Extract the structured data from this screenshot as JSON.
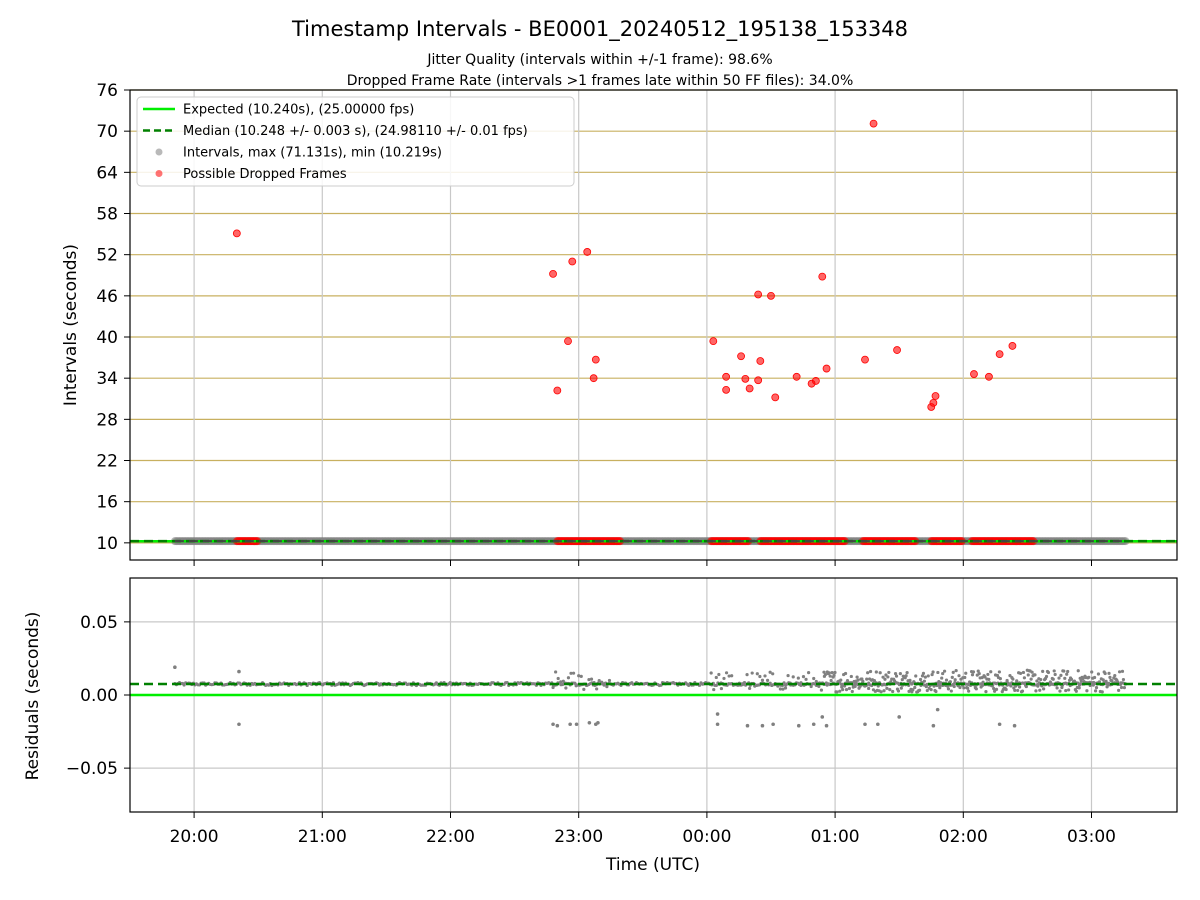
{
  "title": "Timestamp Intervals - BE0001_20240512_195138_153348",
  "subtitle_1": "Jitter Quality (intervals within +/-1 frame): 98.6%",
  "subtitle_2": "Dropped Frame Rate (intervals >1 frames late within 50 FF files): 34.0%",
  "colors": {
    "expected": "#00ee00",
    "median": "#008000",
    "intervals": "#808080",
    "dropped": "#ff0000",
    "hgrid": "#c8b060",
    "vgrid": "#c8c8c8"
  },
  "chart_data": [
    {
      "type": "scatter",
      "ylabel": "Intervals (seconds)",
      "ylim": [
        7.5,
        76
      ],
      "yticks": [
        10,
        16,
        22,
        28,
        34,
        40,
        46,
        52,
        58,
        64,
        70,
        76
      ],
      "xticks": [
        "20:00",
        "21:00",
        "22:00",
        "23:00",
        "00:00",
        "01:00",
        "02:00",
        "03:00"
      ],
      "grid": "on",
      "legend_position": "upper-left",
      "legend": [
        {
          "label": "Expected (10.240s), (25.00000 fps)",
          "style": "solid-line",
          "color": "#00ee00"
        },
        {
          "label": "Median (10.248 +/- 0.003 s), (24.98110 +/- 0.01 fps)",
          "style": "dashed-line",
          "color": "#008000"
        },
        {
          "label": "Intervals, max (71.131s), min (10.219s)",
          "style": "marker",
          "color": "#808080"
        },
        {
          "label": "Possible Dropped Frames",
          "style": "marker",
          "color": "#ff0000"
        }
      ],
      "expected_interval": 10.24,
      "median_interval": 10.248,
      "intervals_time_range": [
        "19:51",
        "03:16"
      ],
      "dropped_frames_at_base_ranges": [
        [
          "20:20",
          "20:30"
        ],
        [
          "22:50",
          "23:20"
        ],
        [
          "00:02",
          "00:20"
        ],
        [
          "00:25",
          "01:05"
        ],
        [
          "01:13",
          "01:38"
        ],
        [
          "01:45",
          "02:00"
        ],
        [
          "02:04",
          "02:33"
        ]
      ],
      "dropped_frames": [
        {
          "x": "20:20",
          "y": 55.1
        },
        {
          "x": "22:48",
          "y": 49.2
        },
        {
          "x": "22:50",
          "y": 32.2
        },
        {
          "x": "22:55",
          "y": 39.4
        },
        {
          "x": "22:57",
          "y": 51.0
        },
        {
          "x": "23:04",
          "y": 52.4
        },
        {
          "x": "23:07",
          "y": 34.0
        },
        {
          "x": "23:08",
          "y": 36.7
        },
        {
          "x": "00:03",
          "y": 39.4
        },
        {
          "x": "00:09",
          "y": 32.3
        },
        {
          "x": "00:09",
          "y": 34.2
        },
        {
          "x": "00:16",
          "y": 37.2
        },
        {
          "x": "00:18",
          "y": 33.9
        },
        {
          "x": "00:20",
          "y": 32.5
        },
        {
          "x": "00:24",
          "y": 33.7
        },
        {
          "x": "00:24",
          "y": 46.2
        },
        {
          "x": "00:25",
          "y": 36.5
        },
        {
          "x": "00:30",
          "y": 46.0
        },
        {
          "x": "00:32",
          "y": 31.2
        },
        {
          "x": "00:42",
          "y": 34.2
        },
        {
          "x": "00:49",
          "y": 33.2
        },
        {
          "x": "00:51",
          "y": 33.6
        },
        {
          "x": "00:54",
          "y": 48.8
        },
        {
          "x": "00:56",
          "y": 35.4
        },
        {
          "x": "01:14",
          "y": 36.7
        },
        {
          "x": "01:18",
          "y": 71.1
        },
        {
          "x": "01:29",
          "y": 38.1
        },
        {
          "x": "01:45",
          "y": 29.8
        },
        {
          "x": "01:46",
          "y": 30.4
        },
        {
          "x": "01:47",
          "y": 31.4
        },
        {
          "x": "02:05",
          "y": 34.6
        },
        {
          "x": "02:12",
          "y": 34.2
        },
        {
          "x": "02:17",
          "y": 37.5
        },
        {
          "x": "02:23",
          "y": 38.7
        }
      ]
    },
    {
      "type": "scatter",
      "xlabel": "Time (UTC)",
      "ylabel": "Residuals (seconds)",
      "ylim": [
        -0.08,
        0.08
      ],
      "yticks": [
        0.05,
        0.0,
        -0.05
      ],
      "ytick_labels": [
        "0.05",
        "0.00",
        "−0.05"
      ],
      "xticks": [
        "20:00",
        "21:00",
        "22:00",
        "23:00",
        "00:00",
        "01:00",
        "02:00",
        "03:00"
      ],
      "grid": "on",
      "expected_residual": 0.0,
      "median_residual": 0.0075,
      "residual_band": {
        "time_range": [
          "19:51",
          "03:16"
        ],
        "typical": 0.0075
      },
      "scatter_band": {
        "time_range": [
          "00:55",
          "03:16"
        ],
        "low": 0.002,
        "high": 0.017
      },
      "outliers": [
        {
          "x": "19:51",
          "y": 0.019
        },
        {
          "x": "20:21",
          "y": -0.02
        },
        {
          "x": "20:21",
          "y": 0.016
        },
        {
          "x": "22:48",
          "y": -0.02
        },
        {
          "x": "22:50",
          "y": -0.021
        },
        {
          "x": "22:56",
          "y": -0.02
        },
        {
          "x": "22:59",
          "y": -0.02
        },
        {
          "x": "23:05",
          "y": -0.019
        },
        {
          "x": "23:08",
          "y": -0.02
        },
        {
          "x": "23:09",
          "y": -0.019
        },
        {
          "x": "00:05",
          "y": -0.02
        },
        {
          "x": "00:05",
          "y": -0.013
        },
        {
          "x": "00:19",
          "y": -0.021
        },
        {
          "x": "00:26",
          "y": -0.021
        },
        {
          "x": "00:31",
          "y": -0.02
        },
        {
          "x": "00:43",
          "y": -0.021
        },
        {
          "x": "00:50",
          "y": -0.02
        },
        {
          "x": "00:54",
          "y": -0.015
        },
        {
          "x": "00:56",
          "y": -0.021
        },
        {
          "x": "01:14",
          "y": -0.02
        },
        {
          "x": "01:20",
          "y": -0.02
        },
        {
          "x": "01:30",
          "y": -0.015
        },
        {
          "x": "01:46",
          "y": -0.021
        },
        {
          "x": "01:48",
          "y": -0.01
        },
        {
          "x": "02:17",
          "y": -0.02
        },
        {
          "x": "02:24",
          "y": -0.021
        }
      ]
    }
  ]
}
